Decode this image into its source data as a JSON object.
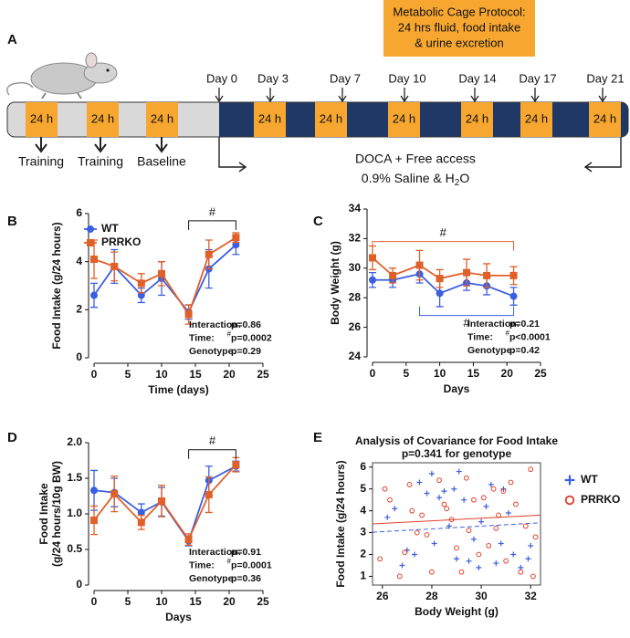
{
  "protocol": {
    "panel_label": "A",
    "header": [
      "Metabolic Cage Protocol:",
      "24 hrs fluid, food intake",
      "& urine excretion"
    ],
    "boxes": [
      "24 h",
      "24 h",
      "24 h",
      "24 h",
      "24 h",
      "24 h",
      "24 h",
      "24 h",
      "24 h"
    ],
    "days": [
      "Day 0",
      "Day 3",
      "Day 7",
      "Day 10",
      "Day 14",
      "Day 17",
      "Day 21"
    ],
    "pre_labels": [
      "Training",
      "Training",
      "Baseline"
    ],
    "treatment_line1": "DOCA + Free access",
    "treatment_line2": {
      "text": "0.9% Saline & H",
      "sub": "2",
      "after": "O"
    }
  },
  "chart_data": [
    {
      "type": "line",
      "panel_label": "B",
      "xlabel": "Time (days)",
      "ylabel": [
        "Food Intake (g/24 hours)"
      ],
      "xlim": [
        0,
        25
      ],
      "xticks": [
        0,
        5,
        10,
        15,
        20,
        25
      ],
      "ylim": [
        0,
        6
      ],
      "yticks": [
        0,
        2,
        4,
        6
      ],
      "x": [
        0,
        3,
        7,
        10,
        14,
        17,
        21
      ],
      "legend": "top-left",
      "series": [
        {
          "name": "WT",
          "color": "#3b5fe0",
          "marker": "circle",
          "values": [
            2.6,
            3.8,
            2.6,
            3.3,
            1.9,
            3.7,
            4.7
          ],
          "errors": [
            0.5,
            0.7,
            0.3,
            0.7,
            0.3,
            0.8,
            0.4
          ]
        },
        {
          "name": "PRRKO",
          "color": "#e0602a",
          "marker": "square",
          "values": [
            4.1,
            3.8,
            3.1,
            3.5,
            1.8,
            4.3,
            5.0
          ],
          "errors": [
            0.8,
            0.6,
            0.4,
            0.5,
            0.4,
            0.6,
            0.2
          ]
        }
      ],
      "brackets": [
        {
          "text": "#",
          "color": "#111111",
          "x": [
            14,
            21
          ],
          "y": 5.7,
          "side": "down"
        }
      ],
      "stats": [
        {
          "label": "Interaction:",
          "value": "p=0.86"
        },
        {
          "label": "Time:",
          "mark": "#",
          "value": "p=0.0002"
        },
        {
          "label": "Genotype:",
          "value": "p=0.29"
        }
      ]
    },
    {
      "type": "line",
      "panel_label": "C",
      "xlabel": "Days",
      "ylabel": [
        "Body Weight (g)"
      ],
      "xlim": [
        0,
        25
      ],
      "xticks": [
        0,
        5,
        10,
        15,
        20,
        25
      ],
      "ylim": [
        24,
        34
      ],
      "yticks": [
        24,
        26,
        28,
        30,
        32,
        34
      ],
      "x": [
        0,
        3,
        7,
        10,
        14,
        17,
        21
      ],
      "series": [
        {
          "name": "WT",
          "color": "#3b5fe0",
          "marker": "circle",
          "values": [
            29.2,
            29.2,
            29.6,
            28.3,
            29.0,
            28.8,
            28.1
          ],
          "errors": [
            0.5,
            0.5,
            0.6,
            0.9,
            0.5,
            0.6,
            0.6
          ]
        },
        {
          "name": "PRRKO",
          "color": "#e0602a",
          "marker": "square",
          "values": [
            30.7,
            29.5,
            30.2,
            29.3,
            29.7,
            29.5,
            29.5
          ],
          "errors": [
            0.8,
            0.5,
            1.0,
            0.6,
            0.9,
            0.8,
            0.6
          ]
        }
      ],
      "brackets": [
        {
          "text": "#",
          "color": "#e0602a",
          "x": [
            0,
            21
          ],
          "y": 31.8,
          "side": "down"
        },
        {
          "text": "#",
          "color": "#3b5fe0",
          "x": [
            7,
            21
          ],
          "y": 26.8,
          "side": "up"
        }
      ],
      "stats": [
        {
          "label": "Interaction:",
          "value": "p=0.21"
        },
        {
          "label": "Time:",
          "mark": "#",
          "value": "p<0.0001"
        },
        {
          "label": "Genotype:",
          "value": "p=0.42"
        }
      ]
    },
    {
      "type": "line",
      "panel_label": "D",
      "xlabel": "Days",
      "ylabel": [
        "Food Intake",
        "(g/24 hours/10g BW)"
      ],
      "xlim": [
        0,
        25
      ],
      "xticks": [
        0,
        5,
        10,
        15,
        20,
        25
      ],
      "ylim": [
        0,
        2
      ],
      "yticks": [
        0,
        0.5,
        {
          "value": 1,
          "label": "1.0"
        },
        1.5,
        {
          "value": 2,
          "label": "2.0"
        }
      ],
      "x": [
        0,
        3,
        7,
        10,
        14,
        17,
        21
      ],
      "series": [
        {
          "name": "WT",
          "color": "#3b5fe0",
          "marker": "circle",
          "values": [
            1.33,
            1.3,
            1.02,
            1.17,
            0.62,
            1.47,
            1.67
          ],
          "errors": [
            0.28,
            0.2,
            0.12,
            0.2,
            0.07,
            0.2,
            0.07
          ]
        },
        {
          "name": "PRRKO",
          "color": "#e0602a",
          "marker": "square",
          "values": [
            0.91,
            1.28,
            0.88,
            1.18,
            0.64,
            1.27,
            1.69
          ],
          "errors": [
            0.2,
            0.25,
            0.1,
            0.22,
            0.08,
            0.25,
            0.1
          ]
        }
      ],
      "brackets": [
        {
          "text": "#",
          "color": "#111111",
          "x": [
            14,
            21
          ],
          "y": 1.9,
          "side": "down"
        }
      ],
      "stats": [
        {
          "label": "Interaction:",
          "value": "p=0.91"
        },
        {
          "label": "Time:",
          "mark": "#",
          "value": "p=0.0001"
        },
        {
          "label": "Genotype:",
          "value": "p=0.36"
        }
      ]
    },
    {
      "type": "scatter",
      "panel_label": "E",
      "title": "Analysis of Covariance for Food Intake",
      "subtitle": "p=0.341 for genotype",
      "xlabel": "Body Weight (g)",
      "ylabel": [
        "Food Intake (g/24 hours)"
      ],
      "xlim": [
        25.6,
        32.4
      ],
      "xticks": [
        26,
        28,
        30,
        32
      ],
      "ylim": [
        0.6,
        6.2
      ],
      "yticks": [
        1,
        2,
        3,
        4,
        5,
        6
      ],
      "frame": true,
      "legend": "right",
      "series": [
        {
          "name": "WT",
          "color": "#3b5fe0",
          "marker": "plus",
          "x": [
            26.2,
            26.5,
            26.8,
            27.0,
            27.3,
            27.5,
            27.8,
            28.0,
            28.1,
            28.3,
            28.5,
            28.7,
            28.9,
            29.0,
            29.1,
            29.3,
            29.5,
            29.7,
            29.9,
            30.0,
            30.2,
            30.4,
            30.6,
            30.8,
            30.9,
            31.1,
            31.3,
            31.6,
            31.9,
            32.0
          ],
          "values": [
            3.7,
            4.1,
            1.5,
            2.2,
            2.0,
            5.3,
            4.8,
            5.7,
            2.5,
            4.6,
            4.9,
            3.3,
            5.0,
            1.8,
            5.8,
            4.5,
            1.7,
            2.7,
            1.4,
            3.5,
            4.2,
            5.2,
            1.6,
            2.5,
            5.0,
            3.9,
            2.0,
            1.4,
            1.8,
            2.4
          ],
          "fit": {
            "x": [
              25.6,
              32.4
            ],
            "y": [
              3.02,
              3.45
            ],
            "dashed": true
          }
        },
        {
          "name": "PRRKO",
          "color": "#e0402a",
          "marker": "open-circle",
          "x": [
            25.9,
            26.1,
            26.3,
            26.7,
            26.9,
            27.1,
            27.2,
            27.4,
            27.6,
            27.8,
            28.0,
            28.3,
            28.5,
            28.6,
            28.8,
            29.0,
            29.2,
            29.4,
            29.5,
            29.7,
            29.9,
            30.1,
            30.3,
            30.5,
            30.6,
            30.7,
            30.9,
            31.0,
            31.2,
            31.4,
            31.6,
            31.8,
            32.0,
            32.1,
            32.2
          ],
          "values": [
            1.8,
            5.0,
            4.5,
            1.0,
            2.1,
            5.2,
            4.0,
            3.0,
            3.8,
            2.9,
            1.2,
            5.4,
            4.3,
            4.1,
            3.6,
            2.3,
            1.2,
            5.5,
            3.1,
            4.5,
            2.0,
            4.6,
            2.4,
            5.0,
            3.2,
            3.8,
            4.9,
            1.7,
            5.3,
            4.3,
            1.2,
            3.3,
            5.9,
            1.0,
            2.8
          ],
          "fit": {
            "x": [
              25.6,
              32.4
            ],
            "y": [
              3.4,
              3.8
            ],
            "dashed": false
          }
        }
      ]
    }
  ]
}
